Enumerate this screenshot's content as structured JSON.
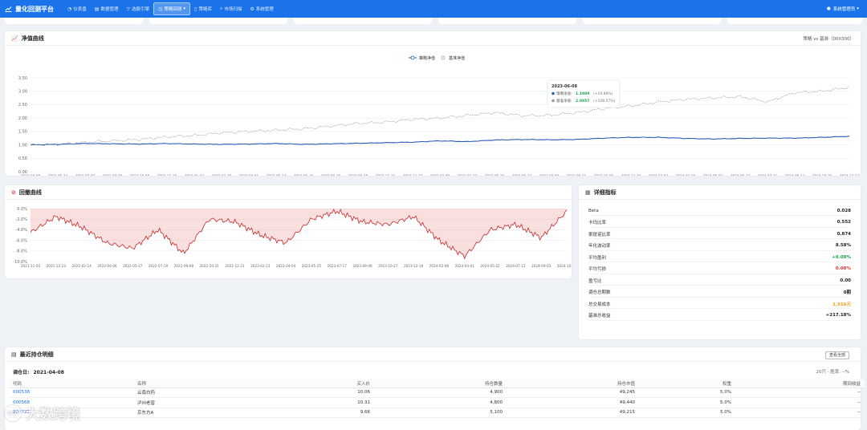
{
  "app": {
    "title": "量化回测平台"
  },
  "nav": [
    {
      "label": "仪表盘",
      "icon": "dashboard-icon",
      "glyph": "◔",
      "active": false
    },
    {
      "label": "数据管理",
      "icon": "database-icon",
      "glyph": "▤",
      "active": false
    },
    {
      "label": "选股引擎",
      "icon": "filter-icon",
      "glyph": "▽",
      "active": false
    },
    {
      "label": "策略回测",
      "icon": "clock-icon",
      "glyph": "◷",
      "active": true
    },
    {
      "label": "策略库",
      "icon": "document-icon",
      "glyph": "▯",
      "active": false
    },
    {
      "label": "市场扫描",
      "icon": "search-icon",
      "glyph": "⌕",
      "active": false
    },
    {
      "label": "系统管理",
      "icon": "gear-icon",
      "glyph": "⚙",
      "active": false
    }
  ],
  "user": {
    "label": "系统管理员"
  },
  "equity": {
    "title": "净值曲线",
    "subtitle": "策略 vs 基准（000300）",
    "legend_strategy": "策略净值",
    "legend_benchmark": "基准净值",
    "tooltip": {
      "date": "2023-06-08",
      "strategy_label": "策略净值:",
      "strategy_value": "1.1989",
      "strategy_pct": "(+19.89%)",
      "benchmark_label": "基准净值:",
      "benchmark_value": "2.0857",
      "benchmark_pct": "(+108.57%)"
    }
  },
  "drawdown": {
    "title": "回撤曲线"
  },
  "metrics": {
    "title": "详细指标",
    "rows": [
      {
        "label": "Beta",
        "value": "0.028",
        "color": "#222"
      },
      {
        "label": "卡玛比率",
        "value": "0.552",
        "color": "#222"
      },
      {
        "label": "索提诺比率",
        "value": "0.874",
        "color": "#222"
      },
      {
        "label": "年化波动率",
        "value": "8.58%",
        "color": "#222"
      },
      {
        "label": "平均盈利",
        "value": "+0.00%",
        "color": "#1aa34a"
      },
      {
        "label": "平均亏损",
        "value": "0.00%",
        "color": "#e03131"
      },
      {
        "label": "盈亏比",
        "value": "0.00",
        "color": "#222"
      },
      {
        "label": "调仓总期数",
        "value": "0期",
        "color": "#222"
      },
      {
        "label": "总交易成本",
        "value": "1,916元",
        "color": "#f0a020"
      },
      {
        "label": "基准总收益",
        "value": "+217.18%",
        "color": "#222"
      }
    ]
  },
  "positions": {
    "title": "最近持仓明细",
    "view_all": "查看全部",
    "rebalance_label": "调仓日:",
    "rebalance_date": "2021-04-08",
    "summary": "20只 · 胜率: --%",
    "columns": [
      "代码",
      "名称",
      "买入价",
      "持仓数量",
      "持仓市值",
      "权重",
      "期间收益"
    ],
    "rows": [
      {
        "code": "000538",
        "name": "云南白药",
        "price": "10.06",
        "qty": "4,900",
        "value": "49,245",
        "weight": "5.0%",
        "ret": "--"
      },
      {
        "code": "000568",
        "name": "泸州老窖",
        "price": "10.31",
        "qty": "4,800",
        "value": "49,440",
        "weight": "5.0%",
        "ret": "--"
      },
      {
        "code": "000725",
        "name": "京东方A",
        "price": "9.66",
        "qty": "5,100",
        "value": "49,215",
        "weight": "5.0%",
        "ret": "--"
      }
    ]
  },
  "watermark": {
    "text": "大数跨境",
    "badge": "1C0"
  },
  "chart_data": [
    {
      "type": "line",
      "title": "净值曲线",
      "x": [
        "2021-04-08",
        "2021-05-24",
        "2021-07-07",
        "2021-08-20",
        "2021-10-05",
        "2021-11-18",
        "2022-01-03",
        "2022-02-16",
        "2022-04-01",
        "2022-05-17",
        "2022-06-30",
        "2022-08-15",
        "2022-09-28",
        "2022-11-11",
        "2022-12-27",
        "2023-02-09",
        "2023-03-27",
        "2023-05-10",
        "2023-06-23",
        "2023-08-08",
        "2023-09-21",
        "2023-11-06",
        "2023-12-20",
        "2024-02-02",
        "2024-03-19",
        "2024-05-02",
        "2024-06-17",
        "2024-07-31",
        "2024-09-13",
        "2024-10-29",
        "2024-12-12"
      ],
      "ylim": [
        0,
        3.5
      ],
      "yticks": [
        "0.00",
        "0.50",
        "1.00",
        "1.50",
        "2.00",
        "2.50",
        "3.00",
        "3.50"
      ],
      "series": [
        {
          "name": "策略净值",
          "color": "#2b5cb8",
          "values": [
            1.0,
            1.02,
            1.05,
            1.04,
            1.03,
            1.05,
            1.03,
            1.02,
            1.03,
            1.05,
            1.02,
            1.04,
            1.06,
            1.08,
            1.1,
            1.15,
            1.12,
            1.18,
            1.2,
            1.19,
            1.2,
            1.25,
            1.28,
            1.28,
            1.24,
            1.22,
            1.24,
            1.25,
            1.25,
            1.28,
            1.32
          ]
        },
        {
          "name": "基准净值",
          "color": "#999999",
          "values": [
            1.0,
            1.02,
            1.1,
            1.15,
            1.2,
            1.3,
            1.35,
            1.45,
            1.5,
            1.55,
            1.6,
            1.7,
            1.8,
            1.85,
            1.95,
            2.0,
            2.1,
            2.2,
            2.09,
            2.1,
            2.2,
            2.35,
            2.45,
            2.6,
            2.7,
            2.75,
            2.8,
            2.6,
            2.95,
            3.0,
            3.15
          ]
        }
      ]
    },
    {
      "type": "area",
      "title": "回撤曲线",
      "x": [
        "2021-11-03",
        "2021-12-23",
        "2022-02-14",
        "2022-04-06",
        "2022-05-27",
        "2022-07-19",
        "2022-09-08",
        "2022-10-31",
        "2022-12-21",
        "2023-02-13",
        "2023-04-04",
        "2023-05-25",
        "2023-07-17",
        "2023-09-06",
        "2023-10-27",
        "2023-12-19",
        "2024-02-08",
        "2024-04-01",
        "2024-05-22",
        "2024-07-12",
        "2024-09-03",
        "2024-10-24"
      ],
      "ylim": [
        -10,
        0
      ],
      "yticks": [
        "0.0%",
        "-2.0%",
        "-4.0%",
        "-6.0%",
        "-8.0%",
        "-10.0%"
      ],
      "series": [
        {
          "name": "",
          "color": "#c62828",
          "values": [
            -4.5,
            -1.5,
            -3.5,
            -6.5,
            -7.5,
            -4.0,
            -8.5,
            -2.0,
            -2.5,
            -5.0,
            -6.5,
            -2.0,
            -0.5,
            -2.5,
            -3.0,
            -1.5,
            -6.0,
            -9.0,
            -4.0,
            -3.0,
            -5.5,
            -0.5
          ]
        }
      ]
    }
  ]
}
